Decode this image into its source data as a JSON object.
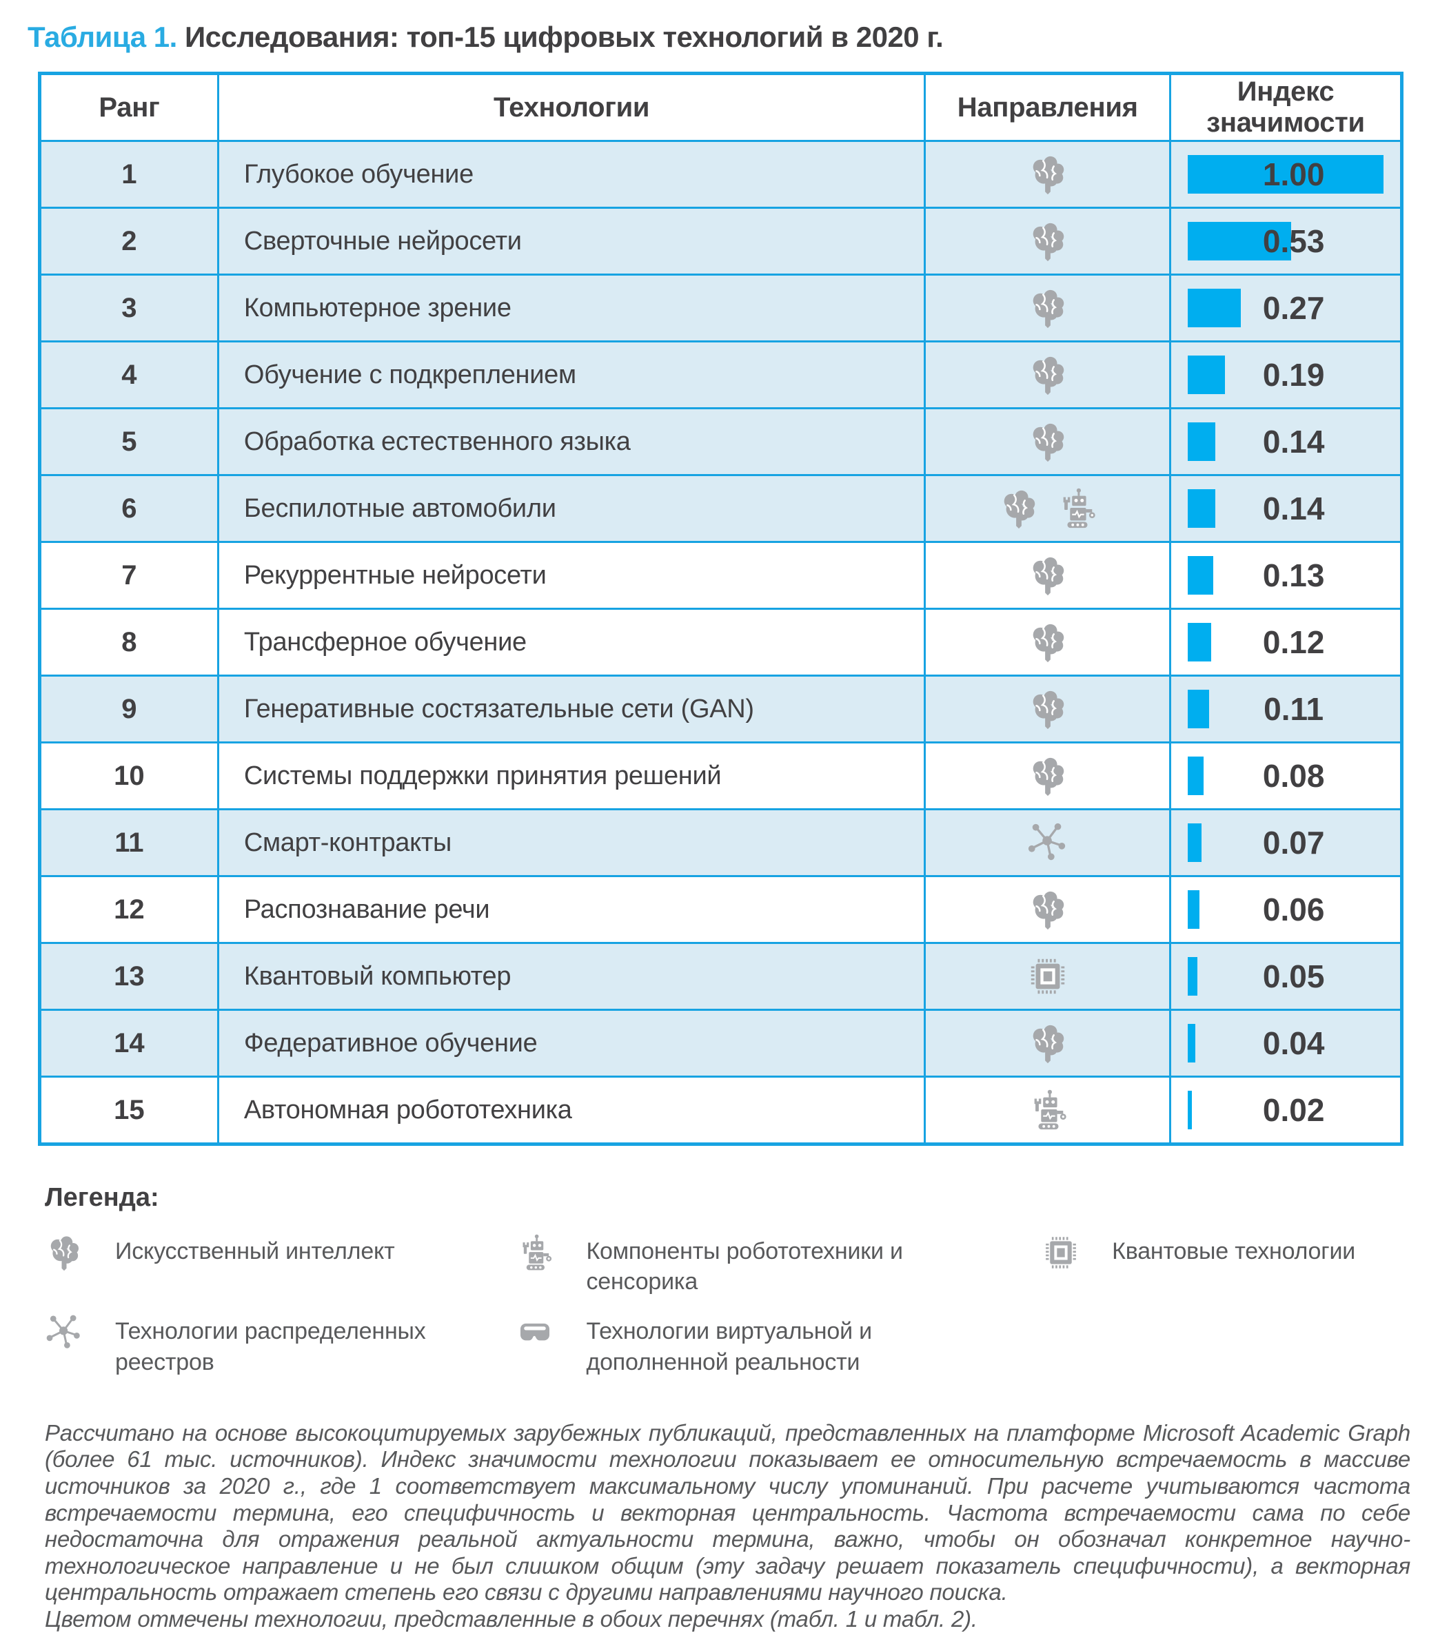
{
  "title": {
    "label": "Таблица 1.",
    "text": "Исследования: топ-15 цифровых технологий в 2020 г."
  },
  "table": {
    "headers": {
      "rank": "Ранг",
      "tech": "Технологии",
      "areas": "Направления",
      "index": "Индекс значимости"
    },
    "rows": [
      {
        "rank": "1",
        "tech": "Глубокое обучение",
        "icons": [
          "ai"
        ],
        "value": "1.00",
        "value_num": 1.0,
        "highlighted": true
      },
      {
        "rank": "2",
        "tech": "Сверточные нейросети",
        "icons": [
          "ai"
        ],
        "value": "0.53",
        "value_num": 0.53,
        "highlighted": true
      },
      {
        "rank": "3",
        "tech": "Компьютерное зрение",
        "icons": [
          "ai"
        ],
        "value": "0.27",
        "value_num": 0.27,
        "highlighted": true
      },
      {
        "rank": "4",
        "tech": "Обучение с подкреплением",
        "icons": [
          "ai"
        ],
        "value": "0.19",
        "value_num": 0.19,
        "highlighted": true
      },
      {
        "rank": "5",
        "tech": "Обработка естественного языка",
        "icons": [
          "ai"
        ],
        "value": "0.14",
        "value_num": 0.14,
        "highlighted": true
      },
      {
        "rank": "6",
        "tech": "Беспилотные автомобили",
        "icons": [
          "ai",
          "robotics"
        ],
        "value": "0.14",
        "value_num": 0.14,
        "highlighted": true
      },
      {
        "rank": "7",
        "tech": "Рекуррентные нейросети",
        "icons": [
          "ai"
        ],
        "value": "0.13",
        "value_num": 0.13,
        "highlighted": false
      },
      {
        "rank": "8",
        "tech": "Трансферное обучение",
        "icons": [
          "ai"
        ],
        "value": "0.12",
        "value_num": 0.12,
        "highlighted": false
      },
      {
        "rank": "9",
        "tech": "Генеративные состязательные сети (GAN)",
        "icons": [
          "ai"
        ],
        "value": "0.11",
        "value_num": 0.11,
        "highlighted": true
      },
      {
        "rank": "10",
        "tech": "Системы поддержки принятия решений",
        "icons": [
          "ai"
        ],
        "value": "0.08",
        "value_num": 0.08,
        "highlighted": false
      },
      {
        "rank": "11",
        "tech": "Смарт-контракты",
        "icons": [
          "dlt"
        ],
        "value": "0.07",
        "value_num": 0.07,
        "highlighted": true
      },
      {
        "rank": "12",
        "tech": "Распознавание речи",
        "icons": [
          "ai"
        ],
        "value": "0.06",
        "value_num": 0.06,
        "highlighted": false
      },
      {
        "rank": "13",
        "tech": "Квантовый компьютер",
        "icons": [
          "quantum"
        ],
        "value": "0.05",
        "value_num": 0.05,
        "highlighted": true
      },
      {
        "rank": "14",
        "tech": "Федеративное обучение",
        "icons": [
          "ai"
        ],
        "value": "0.04",
        "value_num": 0.04,
        "highlighted": true
      },
      {
        "rank": "15",
        "tech": "Автономная робототехника",
        "icons": [
          "robotics"
        ],
        "value": "0.02",
        "value_num": 0.02,
        "highlighted": false
      }
    ]
  },
  "legend": {
    "heading": "Легенда:",
    "items": [
      {
        "icon": "ai",
        "label": "Искусственный интеллект"
      },
      {
        "icon": "robotics",
        "label": "Компоненты робототехники и сенсорика"
      },
      {
        "icon": "quantum",
        "label": "Квантовые технологии"
      },
      {
        "icon": "dlt",
        "label": "Технологии распределенных реестров"
      },
      {
        "icon": "vr",
        "label": "Технологии виртуальной и дополненной реальности"
      }
    ]
  },
  "footnote": {
    "paragraph1": "Рассчитано на основе высокоцитируемых зарубежных публикаций, представленных на платформе Microsoft Academic Graph (более 61 тыс. источников). Индекс значимости технологии показывает ее относительную встречаемость в массиве источников за 2020 г., где 1 соответствует максимальному числу упоминаний. При расчете учитываются частота встречаемости термина, его специфичность и векторная центральность. Частота встречаемости сама по себе недостаточна для отражения реальной актуальности термина, важно, чтобы он обозначал конкретное научно-технологическое направление и не был слишком общим (эту задачу решает показатель специфичности), а векторная центральность отражает степень его связи с другими направлениями научного поиска.",
    "paragraph2": "Цветом отмечены технологии, представленные в обоих перечнях (табл. 1 и табл. 2)."
  },
  "colors": {
    "accent_blue": "#29ABE2",
    "border_blue": "#17A3E2",
    "bar_blue": "#00AEEF",
    "row_highlight": "#DAEBF4",
    "icon_gray": "#A6A8AB",
    "text_dark": "#414042",
    "text_gray": "#58595B"
  }
}
